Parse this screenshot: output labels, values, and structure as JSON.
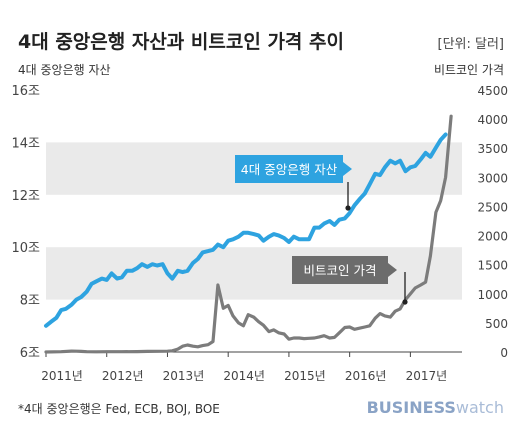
{
  "chart_data": {
    "type": "line",
    "title": "4대 중앙은행 자산과 비트코인 가격 추이",
    "unit_note": "[단위: 달러]",
    "left_axis_label": "4대 중앙은행 자산",
    "right_axis_label": "비트코인 가격",
    "left_ticks": [
      "6조",
      "8조",
      "10조",
      "12조",
      "14조",
      "16조"
    ],
    "left_ylim": [
      6,
      16
    ],
    "right_ticks": [
      "0",
      "500",
      "1000",
      "1500",
      "2000",
      "2500",
      "3000",
      "3500",
      "4000",
      "4500"
    ],
    "right_ylim": [
      0,
      4500
    ],
    "x_ticks": [
      "2011년",
      "2012년",
      "2013년",
      "2014년",
      "2015년",
      "2016년",
      "2017년"
    ],
    "xlim": [
      2011.0,
      2017.85
    ],
    "gridlines": "horizontal bands",
    "series": [
      {
        "name": "4대 중앙은행 자산",
        "axis": "left",
        "color": "#2ea3e0",
        "x": [
          2011.0,
          2011.08,
          2011.17,
          2011.25,
          2011.33,
          2011.42,
          2011.5,
          2011.58,
          2011.67,
          2011.75,
          2011.83,
          2011.92,
          2012.0,
          2012.08,
          2012.17,
          2012.25,
          2012.33,
          2012.42,
          2012.5,
          2012.58,
          2012.67,
          2012.75,
          2012.83,
          2012.92,
          2013.0,
          2013.08,
          2013.17,
          2013.25,
          2013.33,
          2013.42,
          2013.5,
          2013.58,
          2013.67,
          2013.75,
          2013.83,
          2013.92,
          2014.0,
          2014.08,
          2014.17,
          2014.25,
          2014.33,
          2014.42,
          2014.5,
          2014.58,
          2014.67,
          2014.75,
          2014.83,
          2014.92,
          2015.0,
          2015.08,
          2015.17,
          2015.25,
          2015.33,
          2015.42,
          2015.5,
          2015.58,
          2015.67,
          2015.75,
          2015.83,
          2015.92,
          2016.0,
          2016.08,
          2016.17,
          2016.25,
          2016.33,
          2016.42,
          2016.5,
          2016.58,
          2016.67,
          2016.75,
          2016.83,
          2016.92,
          2017.0,
          2017.08,
          2017.17,
          2017.25,
          2017.33,
          2017.42,
          2017.5,
          2017.58
        ],
        "values": [
          7.0,
          7.15,
          7.3,
          7.6,
          7.65,
          7.8,
          8.0,
          8.1,
          8.3,
          8.6,
          8.7,
          8.8,
          8.75,
          9.0,
          8.8,
          8.85,
          9.1,
          9.1,
          9.2,
          9.35,
          9.25,
          9.35,
          9.3,
          9.35,
          9.0,
          8.8,
          9.1,
          9.05,
          9.1,
          9.4,
          9.55,
          9.8,
          9.85,
          9.9,
          10.1,
          10.0,
          10.25,
          10.3,
          10.4,
          10.55,
          10.55,
          10.5,
          10.45,
          10.25,
          10.4,
          10.5,
          10.45,
          10.35,
          10.2,
          10.4,
          10.3,
          10.3,
          10.3,
          10.75,
          10.75,
          10.9,
          11.0,
          10.85,
          11.05,
          11.1,
          11.3,
          11.6,
          11.85,
          12.05,
          12.4,
          12.8,
          12.75,
          13.05,
          13.3,
          13.2,
          13.3,
          12.9,
          13.05,
          13.1,
          13.35,
          13.6,
          13.45,
          13.8,
          14.1,
          14.3
        ]
      },
      {
        "name": "비트코인 가격",
        "axis": "right",
        "color": "#7c7c7c",
        "x": [
          2011.0,
          2011.25,
          2011.42,
          2011.5,
          2011.58,
          2011.67,
          2011.83,
          2012.0,
          2012.25,
          2012.5,
          2012.67,
          2012.83,
          2013.0,
          2013.08,
          2013.17,
          2013.25,
          2013.33,
          2013.42,
          2013.5,
          2013.58,
          2013.67,
          2013.75,
          2013.83,
          2013.92,
          2014.0,
          2014.08,
          2014.17,
          2014.25,
          2014.33,
          2014.42,
          2014.5,
          2014.58,
          2014.67,
          2014.75,
          2014.83,
          2014.92,
          2015.0,
          2015.08,
          2015.17,
          2015.25,
          2015.33,
          2015.42,
          2015.5,
          2015.58,
          2015.67,
          2015.75,
          2015.83,
          2015.92,
          2016.0,
          2016.08,
          2016.17,
          2016.25,
          2016.33,
          2016.42,
          2016.5,
          2016.58,
          2016.67,
          2016.75,
          2016.83,
          2016.92,
          2017.0,
          2017.08,
          2017.17,
          2017.25,
          2017.33,
          2017.42,
          2017.5,
          2017.58,
          2017.67
        ],
        "values": [
          0,
          5,
          15,
          14,
          10,
          6,
          3,
          5,
          5,
          7,
          10,
          12,
          13,
          20,
          50,
          100,
          120,
          100,
          90,
          110,
          125,
          180,
          1150,
          750,
          800,
          620,
          500,
          450,
          640,
          600,
          520,
          460,
          350,
          380,
          330,
          310,
          220,
          240,
          240,
          230,
          235,
          240,
          260,
          280,
          240,
          250,
          330,
          420,
          430,
          390,
          410,
          430,
          450,
          580,
          660,
          620,
          600,
          700,
          740,
          900,
          1000,
          1100,
          1150,
          1200,
          1650,
          2400,
          2600,
          3000,
          4050
        ]
      }
    ],
    "annotations": [
      {
        "text": "4대 중앙은행 자산",
        "target_series": 0
      },
      {
        "text": "비트코인 가격",
        "target_series": 1
      }
    ],
    "footnote": "*4대 중앙은행은 Fed, ECB, BOJ, BOE",
    "brand": {
      "bold": "BUSINESS",
      "light": "watch"
    }
  }
}
